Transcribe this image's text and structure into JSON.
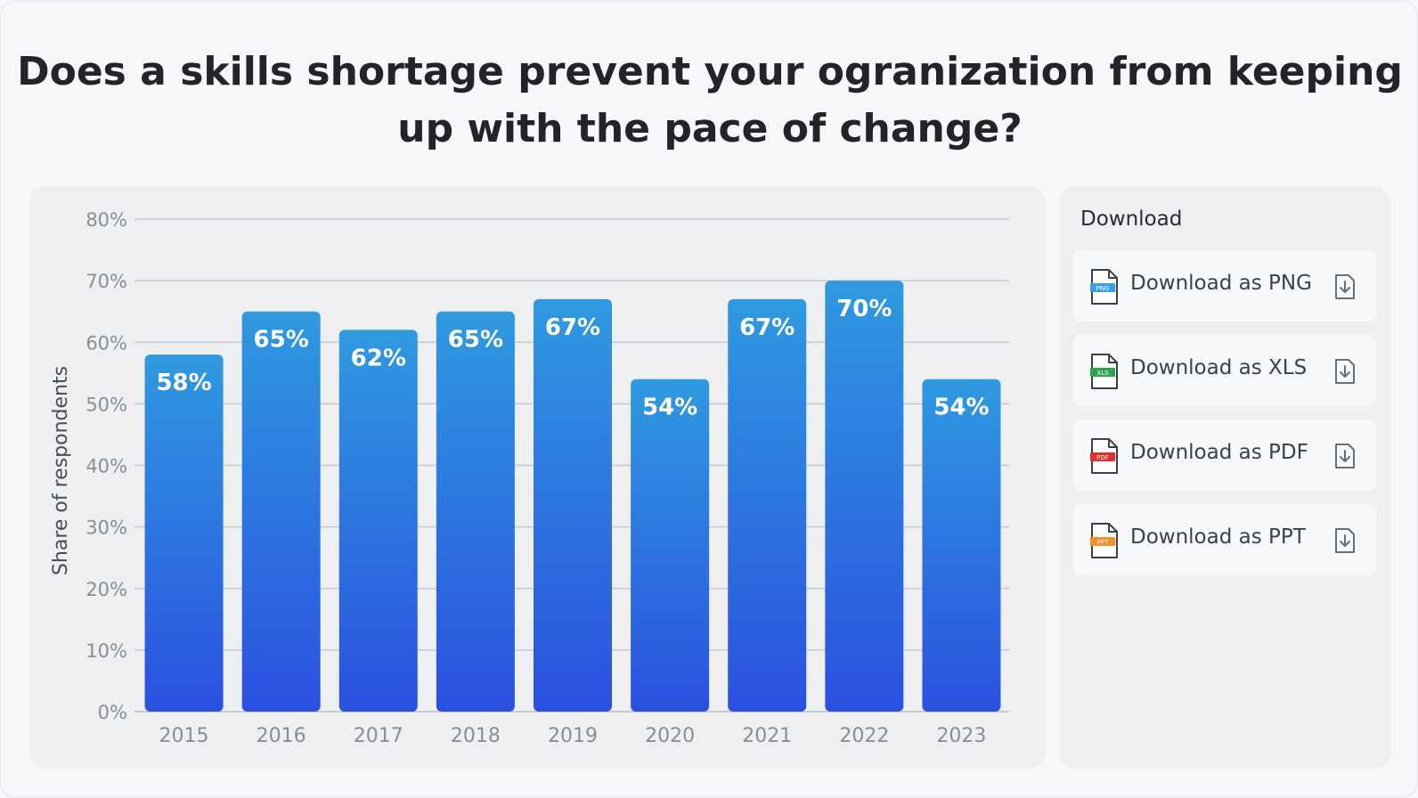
{
  "title": "Does a skills shortage prevent your ogranization from keeping up with the pace of change?",
  "colors": {
    "bar_top": "#2f9ae0",
    "bar_bottom": "#2b50e0",
    "grid": "#c8cacf",
    "axis_text": "#8a8d94"
  },
  "chart_data": {
    "type": "bar",
    "title": "Does a skills shortage prevent your ogranization from keeping up with the pace of change?",
    "categories": [
      "2015",
      "2016",
      "2017",
      "2018",
      "2019",
      "2020",
      "2021",
      "2022",
      "2023"
    ],
    "values": [
      58,
      65,
      62,
      65,
      67,
      54,
      67,
      70,
      54
    ],
    "data_labels": [
      "58%",
      "65%",
      "62%",
      "65%",
      "67%",
      "54%",
      "67%",
      "70%",
      "54%"
    ],
    "xlabel": "",
    "ylabel": "Share of respondents",
    "ylim": [
      0,
      80
    ],
    "yticks": [
      0,
      10,
      20,
      30,
      40,
      50,
      60,
      70,
      80
    ],
    "ytick_labels": [
      "0%",
      "10%",
      "20%",
      "30%",
      "40%",
      "50%",
      "60%",
      "70%",
      "80%"
    ],
    "grid": true
  },
  "download": {
    "title": "Download",
    "items": [
      {
        "label": "Download as PNG",
        "badge": "PNG",
        "color": "#3aa0e6",
        "icon": "png-file-icon"
      },
      {
        "label": "Download as XLS",
        "badge": "XLS",
        "color": "#2ea34f",
        "icon": "xls-file-icon"
      },
      {
        "label": "Download as PDF",
        "badge": "PDF",
        "color": "#d93333",
        "icon": "pdf-file-icon"
      },
      {
        "label": "Download as PPT",
        "badge": "PPT",
        "color": "#f0922a",
        "icon": "ppt-file-icon"
      }
    ]
  }
}
